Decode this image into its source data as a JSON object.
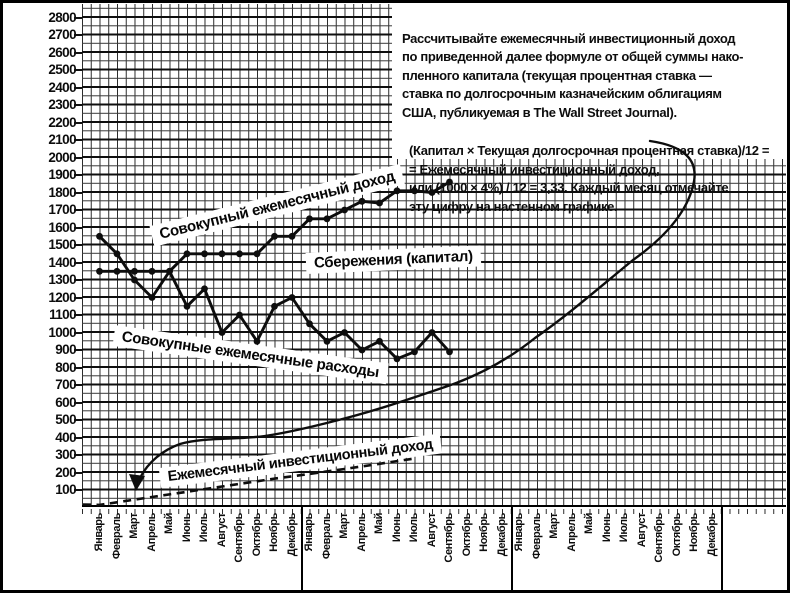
{
  "info_box": {
    "paragraph1": "Рассчитывайте ежемесячный инвестиционный доход\nпо приведенной далее формуле от общей суммы нако-\nпленного капитала (текущая процентная ставка —\nставка по долгосрочным казначейским облигациям\nСША, публикуемая в The Wall Street Journal).",
    "paragraph2": "(Капитал × Текущая долгосрочная процентная ставка)/12 =\n= Ежемесячный инвестиционный доход,\nили (1000 × 4%) / 12 = 3,33. Каждый месяц отмечайте\nэту цифру на настенном графике."
  },
  "chart_data": {
    "type": "line",
    "title": "",
    "xlabel": "",
    "ylabel": "",
    "ylim": [
      0,
      2850
    ],
    "grid": true,
    "y_ticks": [
      2800,
      2700,
      2600,
      2500,
      2400,
      2300,
      2200,
      2100,
      2000,
      1900,
      1800,
      1700,
      1600,
      1500,
      1400,
      1300,
      1200,
      1100,
      1000,
      900,
      800,
      700,
      600,
      500,
      400,
      300,
      200,
      100
    ],
    "x_axis": {
      "months": [
        "Январь",
        "Февраль",
        "Март",
        "Апрель",
        "Май",
        "Июнь",
        "Июль",
        "Август",
        "Сентябрь",
        "Октябрь",
        "Ноябрь",
        "Декабрь"
      ],
      "years_repeated": 3
    },
    "series": [
      {
        "name": "Совокупный ежемесячный доход",
        "style": "solid-dots",
        "start_month_index": 0,
        "values": [
          1350,
          1350,
          1350,
          1350,
          1350,
          1450,
          1450,
          1450,
          1450,
          1450,
          1550,
          1550,
          1650,
          1650,
          1700,
          1750,
          1740,
          1810,
          1810,
          1800,
          1860
        ]
      },
      {
        "name": "Совокупные ежемесячные расходы",
        "style": "solid-dots",
        "start_month_index": 0,
        "values": [
          1550,
          1450,
          1300,
          1200,
          1350,
          1150,
          1250,
          1000,
          1100,
          950,
          1150,
          1200,
          1050,
          950,
          1000,
          900,
          950,
          850,
          890,
          1000,
          890
        ]
      },
      {
        "name": "Ежемесячный инвестиционный доход",
        "style": "dashed",
        "start_month_index": 0,
        "values": [
          15,
          30,
          45,
          60,
          75,
          90,
          105,
          120,
          135,
          150,
          165,
          178,
          192,
          206,
          220,
          235,
          250,
          265,
          280
        ]
      }
    ],
    "annotations": [
      {
        "text": "Сбережения (капитал)",
        "refers_to": "gap between income and expenses lines"
      }
    ]
  }
}
